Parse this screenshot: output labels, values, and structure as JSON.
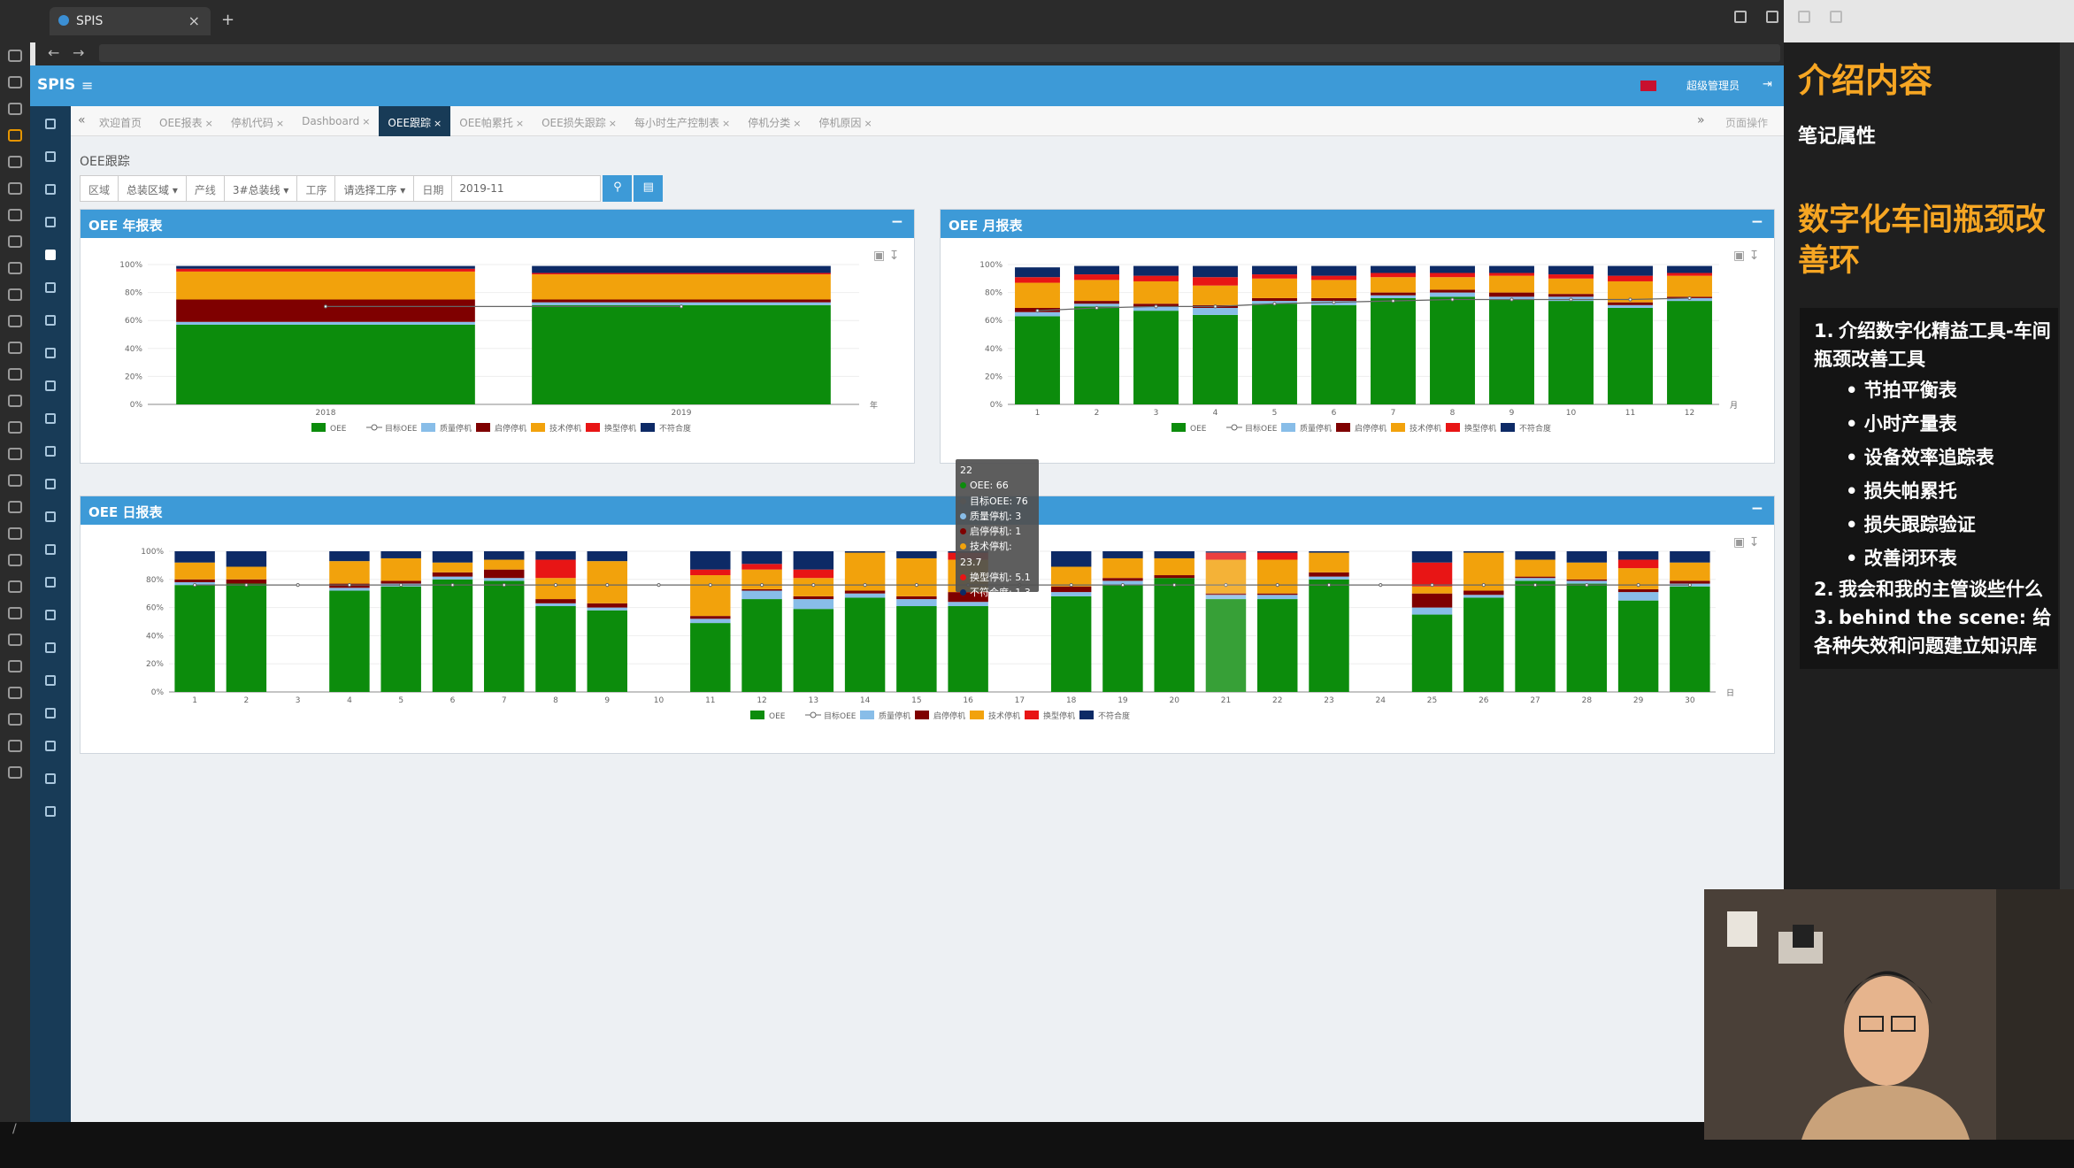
{
  "browser": {
    "tab_title": "SPIS",
    "tab_close": "×",
    "new_tab": "+"
  },
  "app": {
    "brand": "SPIS",
    "menu_icon": "≡",
    "user": "超级管理员",
    "logout_icon": "⇥"
  },
  "tabs": [
    {
      "label": "欢迎首页",
      "close": false
    },
    {
      "label": "OEE报表",
      "close": true
    },
    {
      "label": "停机代码",
      "close": true
    },
    {
      "label": "Dashboard",
      "close": true
    },
    {
      "label": "OEE跟踪",
      "close": true,
      "active": true
    },
    {
      "label": "OEE帕累托",
      "close": true
    },
    {
      "label": "OEE损失跟踪",
      "close": true
    },
    {
      "label": "每小时生产控制表",
      "close": true
    },
    {
      "label": "停机分类",
      "close": true
    },
    {
      "label": "停机原因",
      "close": true
    }
  ],
  "page_ops": "页面操作",
  "breadcrumb": "OEE跟踪",
  "filters": {
    "area_label": "区域",
    "area_value": "总装区域",
    "line_label": "产线",
    "line_value": "3#总装线",
    "station_label": "工序",
    "station_value": "请选择工序",
    "date_label": "日期",
    "date_value": "2019-11"
  },
  "legend": [
    "OEE",
    "目标OEE",
    "质量停机",
    "启停停机",
    "技术停机",
    "换型停机",
    "不符合度"
  ],
  "colors": {
    "oee": "#0c8c0c",
    "target": "#555555",
    "quality": "#88bde8",
    "startstop": "#7f0000",
    "tech": "#f2a20c",
    "changeover": "#e81515",
    "other": "#0d2a66",
    "header": "#3d9ad7"
  },
  "year_panel": {
    "title": "OEE 年报表",
    "x_unit": "年"
  },
  "month_panel": {
    "title": "OEE 月报表",
    "x_unit": "月"
  },
  "day_panel": {
    "title": "OEE 日报表",
    "x_unit": "日"
  },
  "chart_data": [
    {
      "type": "bar",
      "title": "OEE 年报表",
      "categories": [
        "2018",
        "2019"
      ],
      "ylim": [
        0,
        100
      ],
      "yticks": [
        "0%",
        "20%",
        "40%",
        "60%",
        "80%",
        "100%"
      ],
      "series": [
        {
          "name": "OEE",
          "values": [
            57,
            71
          ]
        },
        {
          "name": "质量停机",
          "values": [
            2,
            2
          ]
        },
        {
          "name": "启停停机",
          "values": [
            16,
            2
          ]
        },
        {
          "name": "技术停机",
          "values": [
            20,
            18
          ]
        },
        {
          "name": "换型停机",
          "values": [
            2,
            1
          ]
        },
        {
          "name": "不符合度",
          "values": [
            2,
            5
          ]
        }
      ],
      "target": [
        70,
        70
      ]
    },
    {
      "type": "bar",
      "title": "OEE 月报表",
      "categories": [
        "1",
        "2",
        "3",
        "4",
        "5",
        "6",
        "7",
        "8",
        "9",
        "10",
        "11",
        "12"
      ],
      "ylim": [
        0,
        100
      ],
      "yticks": [
        "0%",
        "20%",
        "40%",
        "60%",
        "80%",
        "100%"
      ],
      "series": [
        {
          "name": "OEE",
          "values": [
            63,
            70,
            67,
            64,
            72,
            71,
            76,
            77,
            75,
            74,
            69,
            74
          ]
        },
        {
          "name": "质量停机",
          "values": [
            3,
            2,
            3,
            5,
            2,
            3,
            2,
            3,
            2,
            3,
            2,
            2
          ]
        },
        {
          "name": "启停停机",
          "values": [
            3,
            2,
            2,
            2,
            2,
            2,
            2,
            2,
            3,
            2,
            2,
            1
          ]
        },
        {
          "name": "技术停机",
          "values": [
            18,
            15,
            16,
            14,
            14,
            13,
            11,
            9,
            12,
            11,
            15,
            15
          ]
        },
        {
          "name": "换型停机",
          "values": [
            4,
            4,
            4,
            6,
            3,
            3,
            3,
            3,
            2,
            3,
            4,
            2
          ]
        },
        {
          "name": "不符合度",
          "values": [
            7,
            6,
            7,
            8,
            6,
            7,
            5,
            5,
            5,
            6,
            7,
            5
          ]
        }
      ],
      "target": [
        67,
        69,
        70,
        70,
        72,
        73,
        74,
        75,
        75,
        75,
        75,
        76
      ]
    },
    {
      "type": "bar",
      "title": "OEE 日报表",
      "categories": [
        "1",
        "2",
        "3",
        "4",
        "5",
        "6",
        "7",
        "8",
        "9",
        "10",
        "11",
        "12",
        "13",
        "14",
        "15",
        "16",
        "17",
        "18",
        "19",
        "20",
        "21",
        "22",
        "23",
        "24",
        "25",
        "26",
        "27",
        "28",
        "29",
        "30"
      ],
      "ylim": [
        0,
        100
      ],
      "yticks": [
        "0%",
        "20%",
        "40%",
        "60%",
        "80%",
        "100%"
      ],
      "series": [
        {
          "name": "OEE",
          "values": [
            76,
            77,
            0,
            72,
            75,
            80,
            79,
            61,
            58,
            0,
            49,
            66,
            59,
            67,
            61,
            61,
            0,
            68,
            76,
            81,
            66,
            66,
            80,
            0,
            55,
            67,
            79,
            77,
            65,
            75
          ]
        },
        {
          "name": "质量停机",
          "values": [
            2,
            0,
            0,
            2,
            2,
            2,
            2,
            2,
            2,
            0,
            3,
            6,
            7,
            3,
            5,
            3,
            0,
            3,
            3,
            0,
            3,
            3,
            2,
            0,
            5,
            2,
            2,
            2,
            6,
            2
          ]
        },
        {
          "name": "启停停机",
          "values": [
            2,
            3,
            0,
            3,
            2,
            3,
            6,
            3,
            3,
            0,
            2,
            1,
            2,
            2,
            2,
            7,
            0,
            4,
            2,
            2,
            1,
            1,
            3,
            0,
            10,
            3,
            1,
            1,
            2,
            2
          ]
        },
        {
          "name": "技术停机",
          "values": [
            12,
            9,
            0,
            16,
            16,
            7,
            7,
            15,
            30,
            0,
            29,
            14,
            13,
            27,
            27,
            23,
            0,
            14,
            14,
            12,
            24,
            24,
            14,
            0,
            5,
            27,
            12,
            12,
            15,
            13
          ]
        },
        {
          "name": "换型停机",
          "values": [
            0,
            0,
            0,
            0,
            0,
            0,
            0,
            13,
            0,
            0,
            4,
            4,
            6,
            0,
            0,
            5,
            0,
            0,
            0,
            0,
            5,
            5,
            0,
            0,
            17,
            0,
            0,
            0,
            6,
            0
          ]
        },
        {
          "name": "不符合度",
          "values": [
            8,
            11,
            0,
            7,
            5,
            8,
            6,
            6,
            7,
            0,
            13,
            9,
            13,
            1,
            5,
            1,
            0,
            11,
            5,
            5,
            1,
            1,
            1,
            0,
            8,
            1,
            6,
            8,
            6,
            8
          ]
        }
      ],
      "target": [
        76,
        76,
        76,
        76,
        76,
        76,
        76,
        76,
        76,
        76,
        76,
        76,
        76,
        76,
        76,
        76,
        76,
        76,
        76,
        76,
        76,
        76,
        76,
        76,
        76,
        76,
        76,
        76,
        76,
        76
      ]
    }
  ],
  "tooltip": {
    "day": "22",
    "rows": [
      {
        "label": "OEE: 66",
        "color": "#0c8c0c"
      },
      {
        "label": "目标OEE: 76",
        "color": "#555555"
      },
      {
        "label": "质量停机: 3",
        "color": "#88bde8"
      },
      {
        "label": "启停停机: 1",
        "color": "#7f0000"
      },
      {
        "label": "技术停机: 23.7",
        "color": "#f2a20c"
      },
      {
        "label": "换型停机: 5.1",
        "color": "#e81515"
      },
      {
        "label": "不符合度: 1.3",
        "color": "#0d2a66"
      }
    ]
  },
  "notes": {
    "title": "介绍内容",
    "subtitle": "笔记属性",
    "heading": "数字化车间瓶颈改善环",
    "items": [
      {
        "num": "1.",
        "text": "介绍数字化精益工具-车间瓶颈改善工具",
        "sub": [
          "节拍平衡表",
          "小时产量表",
          "设备效率追踪表",
          "损失帕累托",
          "损失跟踪验证",
          "改善闭环表"
        ]
      },
      {
        "num": "2.",
        "text": "我会和我的主管谈些什么",
        "sub": []
      },
      {
        "num": "3.",
        "text": "behind the scene: 给各种失效和问题建立知识库",
        "sub": []
      }
    ]
  }
}
